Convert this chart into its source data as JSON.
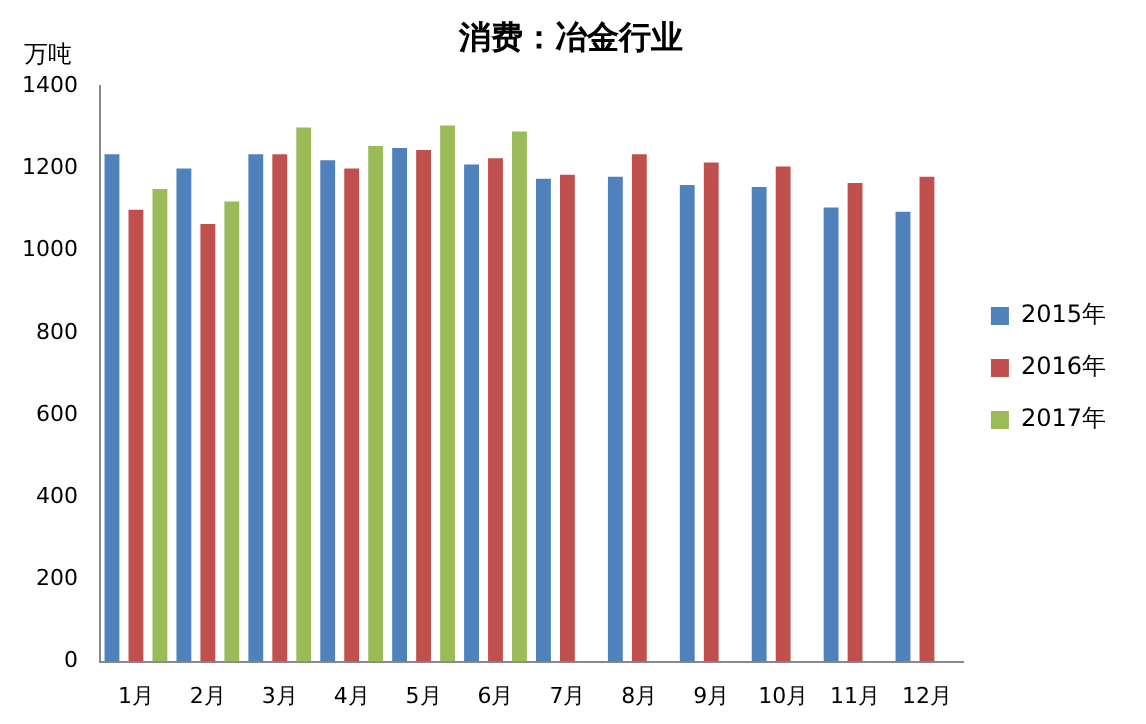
{
  "chart_data": {
    "type": "bar",
    "title": "消费：冶金行业",
    "ylabel": "万吨",
    "categories": [
      "1月",
      "2月",
      "3月",
      "4月",
      "5月",
      "6月",
      "7月",
      "8月",
      "9月",
      "10月",
      "11月",
      "12月"
    ],
    "series": [
      {
        "name": "2015年",
        "color": "#4f81bd",
        "values": [
          1235,
          1200,
          1235,
          1220,
          1250,
          1210,
          1175,
          1180,
          1160,
          1155,
          1105,
          1095
        ]
      },
      {
        "name": "2016年",
        "color": "#c0504d",
        "values": [
          1100,
          1065,
          1235,
          1200,
          1245,
          1225,
          1185,
          1235,
          1215,
          1205,
          1165,
          1180
        ]
      },
      {
        "name": "2017年",
        "color": "#9bbb59",
        "values": [
          1150,
          1120,
          1300,
          1255,
          1305,
          1290,
          null,
          null,
          null,
          null,
          null,
          null
        ]
      }
    ],
    "ylim": [
      0,
      1400
    ],
    "yticks": [
      0,
      200,
      400,
      600,
      800,
      1000,
      1200,
      1400
    ],
    "grid": false,
    "legend": "right"
  }
}
